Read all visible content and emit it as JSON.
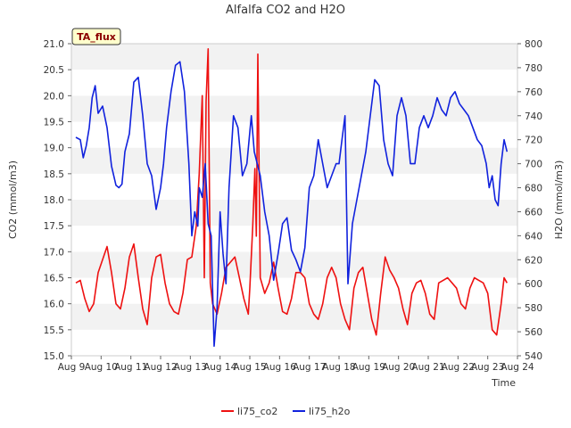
{
  "chart_data": {
    "type": "line",
    "title": "Alfalfa CO2 and H2O",
    "xlabel": "Time",
    "ylabel_left": "CO2 (mmol/m3)",
    "ylabel_right": "H2O (mmol/m3)",
    "annotation": "TA_flux",
    "x_ticks": [
      "Aug 9",
      "Aug 10",
      "Aug 11",
      "Aug 12",
      "Aug 13",
      "Aug 14",
      "Aug 15",
      "Aug 16",
      "Aug 17",
      "Aug 18",
      "Aug 19",
      "Aug 20",
      "Aug 21",
      "Aug 22",
      "Aug 23",
      "Aug 24"
    ],
    "x_range": [
      9,
      24
    ],
    "y_left_range": [
      15.0,
      21.0
    ],
    "y_left_ticks": [
      "15.0",
      "15.5",
      "16.0",
      "16.5",
      "17.0",
      "17.5",
      "18.0",
      "18.5",
      "19.0",
      "19.5",
      "20.0",
      "20.5",
      "21.0"
    ],
    "y_right_range": [
      540,
      800
    ],
    "y_right_ticks": [
      "540",
      "560",
      "580",
      "600",
      "620",
      "640",
      "660",
      "680",
      "700",
      "720",
      "740",
      "760",
      "780",
      "800"
    ],
    "grid": "horizontal bands",
    "legend_position": "bottom",
    "series": [
      {
        "name": "li75_co2",
        "axis": "left",
        "color": "#ee1111",
        "x": [
          9.15,
          9.3,
          9.45,
          9.6,
          9.75,
          9.9,
          10.05,
          10.2,
          10.35,
          10.5,
          10.65,
          10.8,
          10.95,
          11.1,
          11.25,
          11.4,
          11.55,
          11.7,
          11.85,
          12.0,
          12.15,
          12.3,
          12.45,
          12.6,
          12.75,
          12.9,
          13.05,
          13.2,
          13.3,
          13.4,
          13.47,
          13.53,
          13.6,
          13.67,
          13.75,
          13.9,
          14.05,
          14.2,
          14.35,
          14.5,
          14.65,
          14.8,
          14.95,
          15.0,
          15.1,
          15.17,
          15.22,
          15.27,
          15.35,
          15.5,
          15.65,
          15.8,
          15.95,
          16.1,
          16.25,
          16.4,
          16.55,
          16.7,
          16.85,
          17.0,
          17.15,
          17.3,
          17.45,
          17.6,
          17.75,
          17.9,
          18.05,
          18.2,
          18.35,
          18.5,
          18.65,
          18.8,
          18.95,
          19.1,
          19.25,
          19.4,
          19.55,
          19.7,
          19.85,
          20.0,
          20.15,
          20.3,
          20.45,
          20.6,
          20.75,
          20.9,
          21.05,
          21.2,
          21.35,
          21.5,
          21.65,
          21.8,
          21.95,
          22.1,
          22.25,
          22.4,
          22.55,
          22.7,
          22.85,
          23.0,
          23.15,
          23.3,
          23.45,
          23.55,
          23.65
        ],
        "y": [
          16.4,
          16.45,
          16.1,
          15.85,
          16.0,
          16.6,
          16.85,
          17.1,
          16.6,
          16.0,
          15.9,
          16.3,
          16.9,
          17.15,
          16.5,
          15.9,
          15.6,
          16.5,
          16.9,
          16.95,
          16.4,
          16.0,
          15.85,
          15.8,
          16.2,
          16.85,
          16.9,
          17.5,
          18.5,
          20.0,
          16.5,
          19.9,
          20.9,
          16.4,
          16.0,
          15.8,
          16.2,
          16.7,
          16.8,
          16.9,
          16.5,
          16.1,
          15.8,
          16.3,
          17.5,
          18.6,
          17.3,
          20.8,
          16.5,
          16.2,
          16.4,
          16.8,
          16.3,
          15.85,
          15.8,
          16.1,
          16.6,
          16.6,
          16.5,
          16.0,
          15.8,
          15.7,
          16.0,
          16.5,
          16.7,
          16.5,
          16.0,
          15.7,
          15.5,
          16.3,
          16.6,
          16.7,
          16.2,
          15.7,
          15.4,
          16.2,
          16.9,
          16.65,
          16.5,
          16.3,
          15.9,
          15.6,
          16.2,
          16.4,
          16.45,
          16.2,
          15.8,
          15.7,
          16.4,
          16.45,
          16.5,
          16.4,
          16.3,
          16.0,
          15.9,
          16.3,
          16.5,
          16.45,
          16.4,
          16.2,
          15.5,
          15.4,
          16.0,
          16.5,
          16.4
        ]
      },
      {
        "name": "li75_h2o",
        "axis": "right",
        "color": "#1122dd",
        "x": [
          9.15,
          9.3,
          9.4,
          9.5,
          9.6,
          9.7,
          9.8,
          9.9,
          10.05,
          10.2,
          10.35,
          10.5,
          10.6,
          10.7,
          10.8,
          10.95,
          11.1,
          11.25,
          11.4,
          11.55,
          11.7,
          11.85,
          12.0,
          12.1,
          12.2,
          12.35,
          12.5,
          12.65,
          12.8,
          12.95,
          13.05,
          13.15,
          13.25,
          13.3,
          13.4,
          13.5,
          13.6,
          13.7,
          13.8,
          13.9,
          14.0,
          14.1,
          14.2,
          14.3,
          14.45,
          14.6,
          14.75,
          14.9,
          15.05,
          15.15,
          15.25,
          15.35,
          15.5,
          15.65,
          15.8,
          15.95,
          16.1,
          16.25,
          16.4,
          16.55,
          16.7,
          16.85,
          17.0,
          17.15,
          17.3,
          17.45,
          17.6,
          17.75,
          17.9,
          18.0,
          18.1,
          18.2,
          18.3,
          18.45,
          18.6,
          18.75,
          18.9,
          19.05,
          19.2,
          19.35,
          19.5,
          19.65,
          19.8,
          19.95,
          20.1,
          20.25,
          20.4,
          20.55,
          20.7,
          20.85,
          21.0,
          21.15,
          21.3,
          21.45,
          21.6,
          21.75,
          21.9,
          22.05,
          22.2,
          22.35,
          22.5,
          22.65,
          22.8,
          22.95,
          23.05,
          23.15,
          23.25,
          23.35,
          23.45,
          23.55,
          23.65
        ],
        "y": [
          722,
          720,
          705,
          715,
          730,
          755,
          765,
          742,
          748,
          730,
          698,
          682,
          680,
          683,
          710,
          725,
          768,
          772,
          740,
          700,
          690,
          662,
          680,
          700,
          730,
          760,
          782,
          785,
          760,
          700,
          640,
          660,
          648,
          680,
          672,
          700,
          650,
          640,
          548,
          580,
          660,
          625,
          600,
          680,
          740,
          730,
          690,
          700,
          740,
          710,
          700,
          690,
          660,
          640,
          603,
          625,
          650,
          655,
          628,
          620,
          610,
          630,
          680,
          690,
          720,
          700,
          680,
          690,
          700,
          700,
          720,
          740,
          600,
          650,
          670,
          690,
          710,
          740,
          770,
          765,
          720,
          700,
          690,
          740,
          755,
          740,
          700,
          700,
          730,
          740,
          730,
          740,
          755,
          745,
          740,
          755,
          760,
          750,
          745,
          740,
          730,
          720,
          715,
          700,
          680,
          690,
          670,
          665,
          700,
          720,
          710
        ]
      }
    ]
  },
  "legend": [
    {
      "label": "li75_co2",
      "color": "#ee1111"
    },
    {
      "label": "li75_h2o",
      "color": "#1122dd"
    }
  ]
}
